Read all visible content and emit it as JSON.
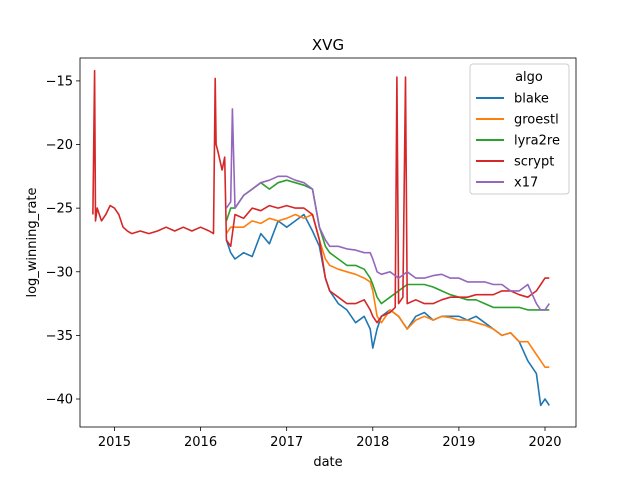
{
  "chart_data": {
    "type": "line",
    "title": "XVG",
    "xlabel": "date",
    "ylabel": "log_winning_rate",
    "xlim": [
      2014.6,
      2020.36
    ],
    "ylim": [
      -42.2,
      -13.2
    ],
    "x_ticks": [
      2015,
      2016,
      2017,
      2018,
      2019,
      2020
    ],
    "x_tick_labels": [
      "2015",
      "2016",
      "2017",
      "2018",
      "2019",
      "2020"
    ],
    "y_ticks": [
      -15,
      -20,
      -25,
      -30,
      -35,
      -40
    ],
    "y_tick_labels": [
      "−15",
      "−20",
      "−25",
      "−30",
      "−35",
      "−40"
    ],
    "legend": {
      "title": "algo",
      "position": "top-right"
    },
    "grid": false,
    "series": [
      {
        "name": "blake",
        "color": "#1f77b4",
        "x": [
          2016.3,
          2016.35,
          2016.4,
          2016.5,
          2016.6,
          2016.7,
          2016.8,
          2016.9,
          2017.0,
          2017.1,
          2017.2,
          2017.3,
          2017.38,
          2017.45,
          2017.5,
          2017.6,
          2017.7,
          2017.8,
          2017.9,
          2017.97,
          2018.0,
          2018.05,
          2018.1,
          2018.2,
          2018.3,
          2018.4,
          2018.5,
          2018.6,
          2018.7,
          2018.8,
          2018.9,
          2019.0,
          2019.1,
          2019.2,
          2019.3,
          2019.4,
          2019.5,
          2019.6,
          2019.7,
          2019.8,
          2019.9,
          2019.95,
          2020.0,
          2020.05
        ],
        "y": [
          -27.5,
          -28.5,
          -29.0,
          -28.5,
          -28.8,
          -27.0,
          -27.8,
          -26.0,
          -26.5,
          -26.0,
          -25.5,
          -26.8,
          -28.0,
          -30.5,
          -31.5,
          -32.5,
          -33.0,
          -34.0,
          -33.5,
          -34.5,
          -36.0,
          -34.5,
          -33.5,
          -33.0,
          -33.5,
          -34.5,
          -33.5,
          -33.2,
          -33.8,
          -33.5,
          -33.5,
          -33.5,
          -33.8,
          -33.5,
          -34.0,
          -34.5,
          -35.0,
          -34.8,
          -35.5,
          -37.0,
          -38.0,
          -40.5,
          -40.0,
          -40.5
        ]
      },
      {
        "name": "groestl",
        "color": "#ff7f0e",
        "x": [
          2016.3,
          2016.35,
          2016.4,
          2016.5,
          2016.6,
          2016.7,
          2016.8,
          2016.9,
          2017.0,
          2017.1,
          2017.2,
          2017.3,
          2017.38,
          2017.45,
          2017.5,
          2017.6,
          2017.7,
          2017.8,
          2017.9,
          2017.97,
          2018.0,
          2018.05,
          2018.1,
          2018.2,
          2018.3,
          2018.4,
          2018.5,
          2018.6,
          2018.7,
          2018.8,
          2018.9,
          2019.0,
          2019.1,
          2019.2,
          2019.3,
          2019.4,
          2019.5,
          2019.6,
          2019.7,
          2019.8,
          2019.9,
          2019.95,
          2020.0,
          2020.05
        ],
        "y": [
          -27.0,
          -26.5,
          -26.5,
          -26.5,
          -26.0,
          -26.2,
          -25.8,
          -26.0,
          -25.8,
          -25.5,
          -25.8,
          -25.5,
          -27.5,
          -29.0,
          -29.5,
          -29.8,
          -30.0,
          -30.2,
          -30.5,
          -30.8,
          -31.5,
          -33.5,
          -34.0,
          -33.0,
          -33.5,
          -34.5,
          -33.8,
          -33.5,
          -33.8,
          -33.5,
          -33.6,
          -33.8,
          -33.8,
          -34.0,
          -34.2,
          -34.5,
          -35.0,
          -34.8,
          -35.5,
          -35.5,
          -36.5,
          -37.0,
          -37.5,
          -37.5
        ]
      },
      {
        "name": "lyra2re",
        "color": "#2ca02c",
        "x": [
          2016.3,
          2016.35,
          2016.4,
          2016.5,
          2016.6,
          2016.7,
          2016.8,
          2016.9,
          2017.0,
          2017.1,
          2017.2,
          2017.3,
          2017.38,
          2017.45,
          2017.5,
          2017.6,
          2017.7,
          2017.8,
          2017.9,
          2017.97,
          2018.0,
          2018.05,
          2018.1,
          2018.2,
          2018.3,
          2018.4,
          2018.5,
          2018.6,
          2018.7,
          2018.8,
          2018.9,
          2019.0,
          2019.1,
          2019.2,
          2019.3,
          2019.4,
          2019.5,
          2019.6,
          2019.7,
          2019.8,
          2019.9,
          2019.95,
          2020.0,
          2020.05
        ],
        "y": [
          -26.0,
          -25.0,
          -25.0,
          -24.0,
          -23.5,
          -23.0,
          -23.5,
          -23.0,
          -22.8,
          -23.0,
          -23.2,
          -23.5,
          -26.5,
          -28.0,
          -28.5,
          -29.0,
          -29.5,
          -29.5,
          -29.8,
          -30.5,
          -31.0,
          -32.0,
          -32.5,
          -32.0,
          -31.5,
          -31.0,
          -31.0,
          -31.0,
          -31.2,
          -31.5,
          -31.8,
          -32.0,
          -32.2,
          -32.2,
          -32.5,
          -32.8,
          -32.8,
          -32.8,
          -32.8,
          -33.0,
          -33.0,
          -33.0,
          -33.0,
          -33.0
        ]
      },
      {
        "name": "scrypt",
        "color": "#d62728",
        "x": [
          2014.75,
          2014.77,
          2014.78,
          2014.8,
          2014.85,
          2014.9,
          2014.95,
          2015.0,
          2015.05,
          2015.1,
          2015.15,
          2015.2,
          2015.3,
          2015.4,
          2015.5,
          2015.6,
          2015.7,
          2015.8,
          2015.9,
          2016.0,
          2016.1,
          2016.15,
          2016.17,
          2016.18,
          2016.2,
          2016.25,
          2016.28,
          2016.3,
          2016.35,
          2016.4,
          2016.5,
          2016.6,
          2016.7,
          2016.8,
          2016.9,
          2017.0,
          2017.1,
          2017.2,
          2017.3,
          2017.38,
          2017.45,
          2017.5,
          2017.6,
          2017.7,
          2017.8,
          2017.9,
          2017.97,
          2018.0,
          2018.05,
          2018.1,
          2018.2,
          2018.26,
          2018.28,
          2018.3,
          2018.35,
          2018.38,
          2018.4,
          2018.5,
          2018.6,
          2018.7,
          2018.8,
          2018.9,
          2019.0,
          2019.1,
          2019.2,
          2019.3,
          2019.4,
          2019.5,
          2019.6,
          2019.7,
          2019.8,
          2019.9,
          2019.95,
          2020.0,
          2020.05
        ],
        "y": [
          -25.5,
          -14.2,
          -26.0,
          -25.0,
          -26.0,
          -25.5,
          -24.8,
          -25.0,
          -25.5,
          -26.5,
          -26.8,
          -27.0,
          -26.8,
          -27.0,
          -26.8,
          -26.5,
          -26.8,
          -26.5,
          -26.8,
          -26.5,
          -26.8,
          -27.0,
          -14.8,
          -20.0,
          -20.5,
          -22.0,
          -21.0,
          -27.5,
          -28.0,
          -25.5,
          -25.8,
          -25.0,
          -25.2,
          -24.8,
          -25.0,
          -24.8,
          -25.0,
          -25.0,
          -25.5,
          -27.5,
          -30.5,
          -31.5,
          -32.0,
          -32.5,
          -32.5,
          -32.2,
          -33.0,
          -33.5,
          -34.0,
          -33.5,
          -33.2,
          -32.8,
          -14.7,
          -32.5,
          -32.0,
          -14.7,
          -32.5,
          -32.2,
          -32.5,
          -32.5,
          -32.2,
          -32.0,
          -32.0,
          -32.0,
          -31.8,
          -31.8,
          -31.8,
          -31.5,
          -31.5,
          -31.8,
          -32.0,
          -31.5,
          -31.0,
          -30.5,
          -30.5
        ]
      },
      {
        "name": "x17",
        "color": "#9467bd",
        "x": [
          2016.3,
          2016.35,
          2016.37,
          2016.4,
          2016.5,
          2016.6,
          2016.7,
          2016.8,
          2016.9,
          2017.0,
          2017.1,
          2017.2,
          2017.3,
          2017.38,
          2017.45,
          2017.5,
          2017.6,
          2017.7,
          2017.8,
          2017.9,
          2017.97,
          2018.0,
          2018.05,
          2018.1,
          2018.2,
          2018.3,
          2018.4,
          2018.5,
          2018.6,
          2018.7,
          2018.8,
          2018.9,
          2019.0,
          2019.1,
          2019.2,
          2019.3,
          2019.4,
          2019.5,
          2019.6,
          2019.7,
          2019.8,
          2019.9,
          2019.95,
          2020.0,
          2020.05
        ],
        "y": [
          -25.0,
          -24.5,
          -17.2,
          -25.0,
          -24.0,
          -23.5,
          -23.0,
          -22.8,
          -22.5,
          -22.5,
          -22.8,
          -23.0,
          -23.5,
          -26.5,
          -27.5,
          -28.0,
          -28.0,
          -28.2,
          -28.3,
          -28.5,
          -28.5,
          -29.0,
          -30.0,
          -30.2,
          -30.0,
          -30.5,
          -30.0,
          -30.5,
          -30.5,
          -30.3,
          -30.2,
          -30.5,
          -30.5,
          -30.8,
          -30.8,
          -30.8,
          -31.0,
          -31.0,
          -31.5,
          -31.5,
          -31.0,
          -32.5,
          -33.0,
          -33.0,
          -32.5
        ]
      }
    ]
  }
}
